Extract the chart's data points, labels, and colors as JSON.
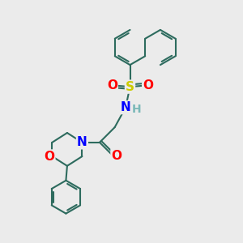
{
  "bg_color": "#ebebeb",
  "bond_color": "#2d6b5e",
  "bond_width": 1.5,
  "atom_colors": {
    "S": "#cccc00",
    "N": "#0000ff",
    "O": "#ff0000",
    "H": "#7ab8b8",
    "C": "#2d6b5e"
  },
  "fig_width": 3.0,
  "fig_height": 3.0,
  "dpi": 100
}
